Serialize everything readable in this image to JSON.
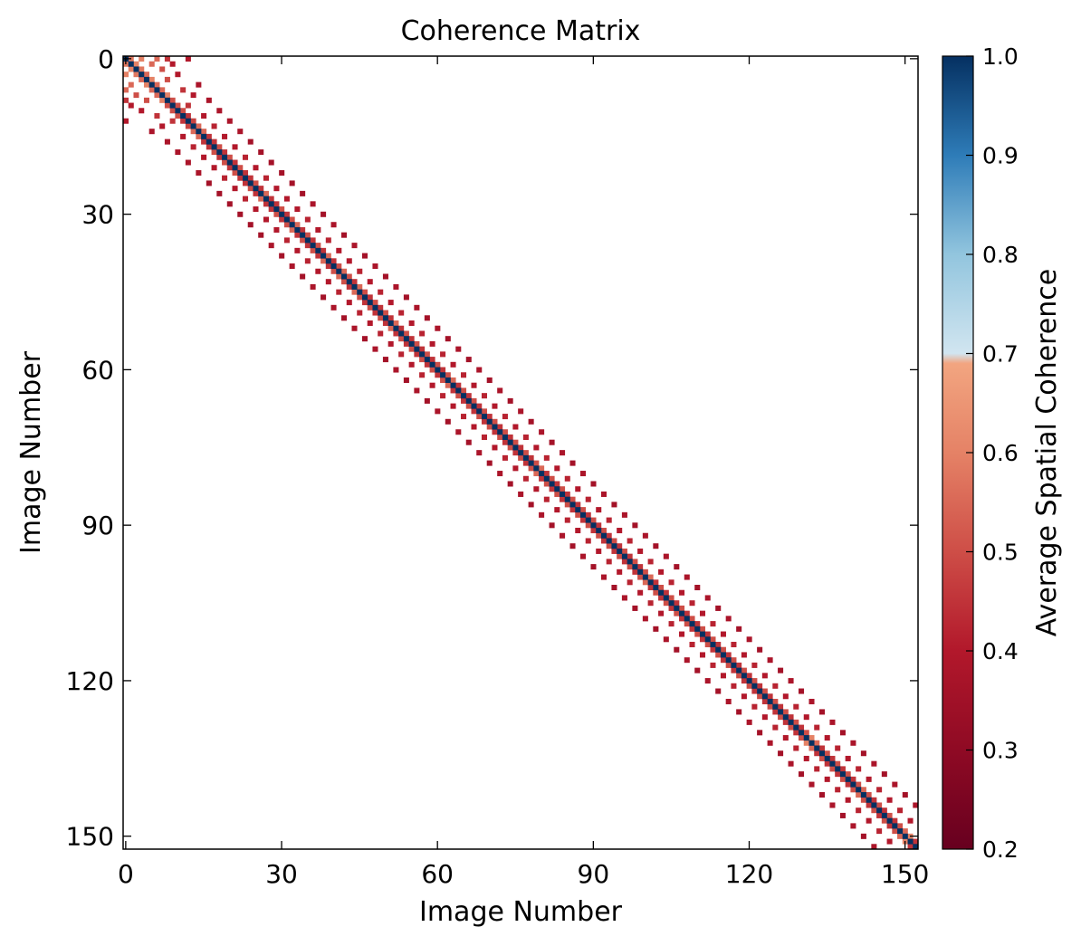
{
  "chart_data": {
    "type": "heatmap",
    "title": "Coherence Matrix",
    "xlabel": "Image Number",
    "ylabel": "Image Number",
    "n_images": 153,
    "xlim": [
      0,
      152
    ],
    "ylim": [
      152,
      0
    ],
    "x_ticks": [
      0,
      30,
      60,
      90,
      120,
      150
    ],
    "y_ticks": [
      0,
      30,
      60,
      90,
      120,
      150
    ],
    "grid": false,
    "diagonal_value": 1.0,
    "colorbar": {
      "label": "Average Spatial Coherence",
      "min": 0.2,
      "max": 1.0,
      "ticks": [
        0.2,
        0.3,
        0.4,
        0.5,
        0.6,
        0.7,
        0.8,
        0.9,
        1.0
      ],
      "colormap": "RdBu (blue above 0.7 at top, red below)",
      "stops": [
        {
          "v": 0.2,
          "color": "#67001f"
        },
        {
          "v": 0.3,
          "color": "#8f0a24"
        },
        {
          "v": 0.4,
          "color": "#b2182b"
        },
        {
          "v": 0.5,
          "color": "#ce4e47"
        },
        {
          "v": 0.6,
          "color": "#e58266"
        },
        {
          "v": 0.69,
          "color": "#f2a580"
        },
        {
          "v": 0.7,
          "color": "#d1e5f0"
        },
        {
          "v": 0.8,
          "color": "#92c5de"
        },
        {
          "v": 0.9,
          "color": "#2e7cb8"
        },
        {
          "v": 1.0,
          "color": "#053061"
        }
      ]
    },
    "pairs": [
      [
        0,
        1,
        0.58
      ],
      [
        0,
        3,
        0.6
      ],
      [
        0,
        6,
        0.55
      ],
      [
        0,
        8,
        0.45
      ],
      [
        0,
        12,
        0.4
      ],
      [
        1,
        2,
        0.6
      ],
      [
        1,
        5,
        0.55
      ],
      [
        1,
        9,
        0.4
      ],
      [
        2,
        3,
        0.58
      ],
      [
        2,
        7,
        0.5
      ],
      [
        3,
        4,
        0.55
      ],
      [
        3,
        10,
        0.4
      ],
      [
        4,
        5,
        0.6
      ],
      [
        4,
        8,
        0.5
      ],
      [
        5,
        6,
        0.55
      ],
      [
        5,
        14,
        0.38
      ],
      [
        6,
        7,
        0.55
      ],
      [
        6,
        11,
        0.45
      ],
      [
        7,
        8,
        0.6
      ],
      [
        7,
        13,
        0.4
      ],
      [
        8,
        9,
        0.5
      ],
      [
        8,
        16,
        0.38
      ],
      [
        9,
        10,
        0.5
      ],
      [
        9,
        12,
        0.45
      ],
      [
        10,
        11,
        0.5
      ],
      [
        10,
        18,
        0.38
      ],
      [
        11,
        12,
        0.45
      ],
      [
        11,
        15,
        0.4
      ],
      [
        12,
        13,
        0.48
      ],
      [
        12,
        20,
        0.38
      ],
      [
        13,
        14,
        0.55
      ],
      [
        13,
        17,
        0.42
      ],
      [
        14,
        15,
        0.55
      ],
      [
        14,
        22,
        0.38
      ],
      [
        15,
        16,
        0.45
      ],
      [
        15,
        19,
        0.4
      ],
      [
        16,
        17,
        0.45
      ],
      [
        16,
        24,
        0.36
      ],
      [
        17,
        18,
        0.5
      ],
      [
        17,
        21,
        0.4
      ],
      [
        18,
        19,
        0.45
      ],
      [
        18,
        26,
        0.36
      ],
      [
        19,
        20,
        0.5
      ],
      [
        19,
        23,
        0.42
      ],
      [
        20,
        21,
        0.45
      ],
      [
        20,
        28,
        0.36
      ],
      [
        21,
        22,
        0.5
      ],
      [
        21,
        25,
        0.4
      ],
      [
        22,
        23,
        0.45
      ],
      [
        22,
        30,
        0.36
      ],
      [
        23,
        24,
        0.45
      ],
      [
        23,
        27,
        0.42
      ],
      [
        24,
        25,
        0.5
      ],
      [
        24,
        32,
        0.36
      ],
      [
        25,
        26,
        0.45
      ],
      [
        25,
        29,
        0.4
      ],
      [
        26,
        27,
        0.55
      ],
      [
        26,
        34,
        0.36
      ],
      [
        27,
        28,
        0.45
      ],
      [
        27,
        31,
        0.4
      ],
      [
        28,
        29,
        0.45
      ],
      [
        28,
        36,
        0.38
      ],
      [
        29,
        30,
        0.5
      ],
      [
        29,
        33,
        0.4
      ],
      [
        30,
        31,
        0.45
      ],
      [
        30,
        38,
        0.36
      ],
      [
        31,
        32,
        0.5
      ],
      [
        31,
        35,
        0.42
      ],
      [
        32,
        33,
        0.55
      ],
      [
        32,
        40,
        0.38
      ],
      [
        33,
        34,
        0.45
      ],
      [
        33,
        37,
        0.4
      ],
      [
        34,
        35,
        0.5
      ],
      [
        34,
        42,
        0.36
      ],
      [
        35,
        36,
        0.45
      ],
      [
        35,
        39,
        0.42
      ],
      [
        36,
        37,
        0.5
      ],
      [
        36,
        44,
        0.38
      ],
      [
        37,
        38,
        0.45
      ],
      [
        37,
        41,
        0.4
      ],
      [
        38,
        39,
        0.55
      ],
      [
        38,
        46,
        0.36
      ],
      [
        39,
        40,
        0.45
      ],
      [
        39,
        43,
        0.4
      ],
      [
        40,
        41,
        0.5
      ],
      [
        40,
        48,
        0.38
      ],
      [
        41,
        42,
        0.55
      ],
      [
        41,
        45,
        0.42
      ],
      [
        42,
        43,
        0.5
      ],
      [
        42,
        50,
        0.36
      ],
      [
        43,
        44,
        0.45
      ],
      [
        43,
        47,
        0.4
      ],
      [
        44,
        45,
        0.55
      ],
      [
        44,
        52,
        0.38
      ],
      [
        45,
        46,
        0.5
      ],
      [
        45,
        49,
        0.42
      ],
      [
        46,
        47,
        0.45
      ],
      [
        46,
        54,
        0.36
      ],
      [
        47,
        48,
        0.5
      ],
      [
        47,
        51,
        0.4
      ],
      [
        48,
        49,
        0.45
      ],
      [
        48,
        56,
        0.38
      ],
      [
        49,
        50,
        0.5
      ],
      [
        49,
        53,
        0.42
      ],
      [
        50,
        51,
        0.45
      ],
      [
        50,
        58,
        0.36
      ],
      [
        51,
        52,
        0.55
      ],
      [
        51,
        55,
        0.4
      ],
      [
        52,
        53,
        0.45
      ],
      [
        52,
        60,
        0.38
      ],
      [
        53,
        54,
        0.5
      ],
      [
        53,
        57,
        0.42
      ],
      [
        54,
        55,
        0.45
      ],
      [
        54,
        62,
        0.36
      ],
      [
        55,
        56,
        0.5
      ],
      [
        55,
        59,
        0.4
      ],
      [
        56,
        57,
        0.45
      ],
      [
        56,
        64,
        0.38
      ],
      [
        57,
        58,
        0.5
      ],
      [
        57,
        61,
        0.42
      ],
      [
        58,
        59,
        0.45
      ],
      [
        58,
        66,
        0.36
      ],
      [
        59,
        60,
        0.5
      ],
      [
        59,
        63,
        0.4
      ],
      [
        60,
        61,
        0.45
      ],
      [
        60,
        68,
        0.38
      ],
      [
        61,
        62,
        0.5
      ],
      [
        61,
        65,
        0.42
      ],
      [
        62,
        63,
        0.55
      ],
      [
        62,
        70,
        0.36
      ],
      [
        63,
        64,
        0.45
      ],
      [
        63,
        67,
        0.4
      ],
      [
        64,
        65,
        0.5
      ],
      [
        64,
        72,
        0.38
      ],
      [
        65,
        66,
        0.45
      ],
      [
        65,
        69,
        0.42
      ],
      [
        66,
        67,
        0.5
      ],
      [
        66,
        74,
        0.36
      ],
      [
        67,
        68,
        0.45
      ],
      [
        67,
        71,
        0.4
      ],
      [
        68,
        69,
        0.5
      ],
      [
        68,
        76,
        0.38
      ],
      [
        69,
        70,
        0.45
      ],
      [
        69,
        73,
        0.42
      ],
      [
        70,
        71,
        0.5
      ],
      [
        70,
        78,
        0.36
      ],
      [
        71,
        72,
        0.45
      ],
      [
        71,
        75,
        0.4
      ],
      [
        72,
        73,
        0.5
      ],
      [
        72,
        80,
        0.38
      ],
      [
        73,
        74,
        0.45
      ],
      [
        73,
        77,
        0.42
      ],
      [
        74,
        75,
        0.5
      ],
      [
        74,
        82,
        0.36
      ],
      [
        75,
        76,
        0.45
      ],
      [
        75,
        79,
        0.4
      ],
      [
        76,
        77,
        0.5
      ],
      [
        76,
        84,
        0.38
      ],
      [
        77,
        78,
        0.45
      ],
      [
        77,
        81,
        0.42
      ],
      [
        78,
        79,
        0.5
      ],
      [
        78,
        86,
        0.36
      ],
      [
        79,
        80,
        0.55
      ],
      [
        79,
        83,
        0.4
      ],
      [
        80,
        81,
        0.45
      ],
      [
        80,
        88,
        0.38
      ],
      [
        81,
        82,
        0.5
      ],
      [
        81,
        85,
        0.42
      ],
      [
        82,
        83,
        0.45
      ],
      [
        82,
        90,
        0.36
      ],
      [
        83,
        84,
        0.5
      ],
      [
        83,
        87,
        0.4
      ],
      [
        84,
        85,
        0.45
      ],
      [
        84,
        92,
        0.38
      ],
      [
        85,
        86,
        0.5
      ],
      [
        85,
        89,
        0.42
      ],
      [
        86,
        87,
        0.45
      ],
      [
        86,
        94,
        0.36
      ],
      [
        87,
        88,
        0.5
      ],
      [
        87,
        91,
        0.4
      ],
      [
        88,
        89,
        0.45
      ],
      [
        88,
        96,
        0.38
      ],
      [
        89,
        90,
        0.5
      ],
      [
        89,
        93,
        0.42
      ],
      [
        90,
        91,
        0.45
      ],
      [
        90,
        98,
        0.36
      ],
      [
        91,
        92,
        0.5
      ],
      [
        91,
        95,
        0.4
      ],
      [
        92,
        93,
        0.45
      ],
      [
        92,
        100,
        0.38
      ],
      [
        93,
        94,
        0.5
      ],
      [
        93,
        97,
        0.42
      ],
      [
        94,
        95,
        0.45
      ],
      [
        94,
        102,
        0.36
      ],
      [
        95,
        96,
        0.5
      ],
      [
        95,
        99,
        0.4
      ],
      [
        96,
        97,
        0.45
      ],
      [
        96,
        104,
        0.38
      ],
      [
        97,
        98,
        0.5
      ],
      [
        97,
        101,
        0.42
      ],
      [
        98,
        99,
        0.45
      ],
      [
        98,
        106,
        0.36
      ],
      [
        99,
        100,
        0.5
      ],
      [
        99,
        103,
        0.4
      ],
      [
        100,
        101,
        0.55
      ],
      [
        100,
        108,
        0.38
      ],
      [
        101,
        102,
        0.45
      ],
      [
        101,
        105,
        0.42
      ],
      [
        102,
        103,
        0.5
      ],
      [
        102,
        110,
        0.36
      ],
      [
        103,
        104,
        0.45
      ],
      [
        103,
        107,
        0.4
      ],
      [
        104,
        105,
        0.5
      ],
      [
        104,
        112,
        0.38
      ],
      [
        105,
        106,
        0.45
      ],
      [
        105,
        109,
        0.42
      ],
      [
        106,
        107,
        0.5
      ],
      [
        106,
        114,
        0.36
      ],
      [
        107,
        108,
        0.45
      ],
      [
        107,
        111,
        0.4
      ],
      [
        108,
        109,
        0.5
      ],
      [
        108,
        116,
        0.38
      ],
      [
        109,
        110,
        0.45
      ],
      [
        109,
        113,
        0.42
      ],
      [
        110,
        111,
        0.5
      ],
      [
        110,
        118,
        0.36
      ],
      [
        111,
        112,
        0.45
      ],
      [
        111,
        115,
        0.4
      ],
      [
        112,
        113,
        0.5
      ],
      [
        112,
        120,
        0.38
      ],
      [
        113,
        114,
        0.45
      ],
      [
        113,
        117,
        0.42
      ],
      [
        114,
        115,
        0.5
      ],
      [
        114,
        122,
        0.36
      ],
      [
        115,
        116,
        0.45
      ],
      [
        115,
        119,
        0.4
      ],
      [
        116,
        117,
        0.5
      ],
      [
        116,
        124,
        0.38
      ],
      [
        117,
        118,
        0.45
      ],
      [
        117,
        121,
        0.42
      ],
      [
        118,
        119,
        0.5
      ],
      [
        118,
        126,
        0.36
      ],
      [
        119,
        120,
        0.45
      ],
      [
        119,
        123,
        0.4
      ],
      [
        120,
        121,
        0.5
      ],
      [
        120,
        128,
        0.38
      ],
      [
        121,
        122,
        0.45
      ],
      [
        121,
        125,
        0.42
      ],
      [
        122,
        123,
        0.5
      ],
      [
        122,
        130,
        0.36
      ],
      [
        123,
        124,
        0.45
      ],
      [
        123,
        127,
        0.4
      ],
      [
        124,
        125,
        0.5
      ],
      [
        124,
        132,
        0.38
      ],
      [
        125,
        126,
        0.45
      ],
      [
        125,
        129,
        0.42
      ],
      [
        126,
        127,
        0.5
      ],
      [
        126,
        134,
        0.36
      ],
      [
        127,
        128,
        0.45
      ],
      [
        127,
        131,
        0.4
      ],
      [
        128,
        129,
        0.5
      ],
      [
        128,
        136,
        0.38
      ],
      [
        129,
        130,
        0.45
      ],
      [
        129,
        133,
        0.42
      ],
      [
        130,
        131,
        0.5
      ],
      [
        130,
        138,
        0.36
      ],
      [
        131,
        132,
        0.6
      ],
      [
        131,
        135,
        0.4
      ],
      [
        132,
        133,
        0.55
      ],
      [
        132,
        140,
        0.38
      ],
      [
        133,
        134,
        0.45
      ],
      [
        133,
        137,
        0.42
      ],
      [
        134,
        135,
        0.5
      ],
      [
        134,
        142,
        0.36
      ],
      [
        135,
        136,
        0.45
      ],
      [
        135,
        139,
        0.4
      ],
      [
        136,
        137,
        0.5
      ],
      [
        136,
        144,
        0.38
      ],
      [
        137,
        138,
        0.45
      ],
      [
        137,
        141,
        0.42
      ],
      [
        138,
        139,
        0.5
      ],
      [
        138,
        146,
        0.36
      ],
      [
        139,
        140,
        0.45
      ],
      [
        139,
        143,
        0.4
      ],
      [
        140,
        141,
        0.5
      ],
      [
        140,
        148,
        0.38
      ],
      [
        141,
        142,
        0.55
      ],
      [
        141,
        145,
        0.42
      ],
      [
        142,
        143,
        0.5
      ],
      [
        142,
        150,
        0.36
      ],
      [
        143,
        144,
        0.45
      ],
      [
        143,
        147,
        0.4
      ],
      [
        144,
        145,
        0.5
      ],
      [
        144,
        152,
        0.38
      ],
      [
        145,
        146,
        0.45
      ],
      [
        145,
        149,
        0.42
      ],
      [
        146,
        147,
        0.5
      ],
      [
        147,
        148,
        0.45
      ],
      [
        147,
        151,
        0.4
      ],
      [
        148,
        149,
        0.5
      ],
      [
        149,
        150,
        0.55
      ],
      [
        150,
        151,
        0.6
      ],
      [
        151,
        152,
        0.45
      ]
    ]
  }
}
